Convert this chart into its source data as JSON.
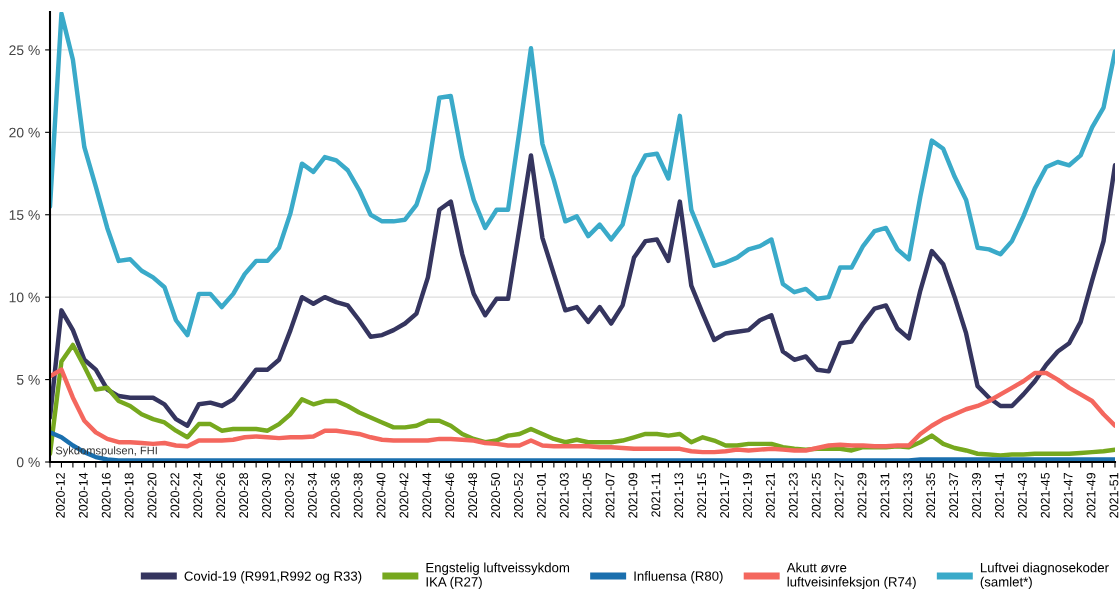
{
  "chart_data": {
    "type": "line",
    "categories": [
      null,
      "2020-12",
      null,
      "2020-14",
      null,
      "2020-16",
      null,
      "2020-18",
      null,
      "2020-20",
      null,
      "2020-22",
      null,
      "2020-24",
      null,
      "2020-26",
      null,
      "2020-28",
      null,
      "2020-30",
      null,
      "2020-32",
      null,
      "2020-34",
      null,
      "2020-36",
      null,
      "2020-38",
      null,
      "2020-40",
      null,
      "2020-42",
      null,
      "2020-44",
      null,
      "2020-46",
      null,
      "2020-48",
      null,
      "2020-50",
      null,
      "2020-52",
      null,
      "2021-01",
      null,
      "2021-03",
      null,
      "2021-05",
      null,
      "2021-07",
      null,
      "2021-09",
      null,
      "2021-11",
      null,
      "2021-13",
      null,
      "2021-15",
      null,
      "2021-17",
      null,
      "2021-19",
      null,
      "2021-21",
      null,
      "2021-23",
      null,
      "2021-25",
      null,
      "2021-27",
      null,
      "2021-29",
      null,
      "2021-31",
      null,
      "2021-33",
      null,
      "2021-35",
      null,
      "2021-37",
      null,
      "2021-39",
      null,
      "2021-41",
      null,
      "2021-43",
      null,
      "2021-45",
      null,
      "2021-47",
      null,
      "2021-49",
      null,
      "2021-51"
    ],
    "series": [
      {
        "name": "Covid-19 (R991,R992 og R33)",
        "color": "#35355f",
        "values": [
          2.7,
          9.2,
          8.0,
          6.2,
          5.6,
          4.4,
          4.0,
          3.9,
          3.9,
          3.9,
          3.5,
          2.6,
          2.2,
          3.5,
          3.6,
          3.4,
          3.8,
          4.7,
          5.6,
          5.6,
          6.2,
          8.0,
          10.0,
          9.6,
          10.0,
          9.7,
          9.5,
          8.6,
          7.6,
          7.7,
          8.0,
          8.4,
          9.0,
          11.2,
          15.3,
          15.8,
          12.6,
          10.2,
          8.9,
          9.9,
          9.9,
          14.2,
          18.6,
          13.6,
          11.4,
          9.2,
          9.4,
          8.5,
          9.4,
          8.4,
          9.5,
          12.4,
          13.4,
          13.5,
          12.2,
          15.8,
          10.7,
          9.0,
          7.4,
          7.8,
          7.9,
          8.0,
          8.6,
          8.9,
          6.7,
          6.2,
          6.4,
          5.6,
          5.5,
          7.2,
          7.3,
          8.4,
          9.3,
          9.5,
          8.1,
          7.5,
          10.4,
          12.8,
          12.0,
          10.0,
          7.8,
          4.6,
          3.9,
          3.4,
          3.4,
          4.1,
          4.9,
          5.9,
          6.7,
          7.2,
          8.5,
          11.0,
          13.4,
          18.0
        ]
      },
      {
        "name": "Engstelig luftveissykdom\nIKA (R27)",
        "color": "#76a81e",
        "values": [
          0.5,
          6.1,
          7.1,
          5.8,
          4.4,
          4.5,
          3.7,
          3.4,
          2.9,
          2.6,
          2.4,
          1.9,
          1.5,
          2.3,
          2.3,
          1.9,
          2.0,
          2.0,
          2.0,
          1.9,
          2.3,
          2.9,
          3.8,
          3.5,
          3.7,
          3.7,
          3.4,
          3.0,
          2.7,
          2.4,
          2.1,
          2.1,
          2.2,
          2.5,
          2.5,
          2.2,
          1.7,
          1.4,
          1.2,
          1.3,
          1.6,
          1.7,
          2.0,
          1.7,
          1.4,
          1.2,
          1.35,
          1.2,
          1.2,
          1.2,
          1.3,
          1.5,
          1.7,
          1.7,
          1.6,
          1.7,
          1.2,
          1.5,
          1.3,
          1.0,
          1.0,
          1.1,
          1.1,
          1.1,
          0.9,
          0.8,
          0.75,
          0.8,
          0.8,
          0.8,
          0.7,
          0.9,
          0.9,
          0.9,
          0.95,
          0.9,
          1.2,
          1.6,
          1.1,
          0.85,
          0.7,
          0.5,
          0.45,
          0.4,
          0.45,
          0.45,
          0.5,
          0.5,
          0.5,
          0.5,
          0.55,
          0.6,
          0.65,
          0.75
        ]
      },
      {
        "name": "Influensa (R80)",
        "color": "#1a6fae",
        "values": [
          1.8,
          1.5,
          1.0,
          0.6,
          0.3,
          0.15,
          0.1,
          0.1,
          0.1,
          0.1,
          0.1,
          0.1,
          0.1,
          0.1,
          0.1,
          0.1,
          0.1,
          0.1,
          0.1,
          0.1,
          0.1,
          0.1,
          0.1,
          0.1,
          0.1,
          0.1,
          0.1,
          0.1,
          0.1,
          0.1,
          0.1,
          0.1,
          0.1,
          0.1,
          0.1,
          0.1,
          0.1,
          0.1,
          0.1,
          0.1,
          0.1,
          0.1,
          0.1,
          0.1,
          0.1,
          0.1,
          0.1,
          0.1,
          0.1,
          0.1,
          0.1,
          0.1,
          0.1,
          0.1,
          0.1,
          0.1,
          0.1,
          0.1,
          0.1,
          0.1,
          0.1,
          0.1,
          0.1,
          0.1,
          0.1,
          0.1,
          0.1,
          0.1,
          0.1,
          0.1,
          0.1,
          0.1,
          0.1,
          0.1,
          0.1,
          0.1,
          0.15,
          0.15,
          0.15,
          0.15,
          0.15,
          0.15,
          0.15,
          0.15,
          0.15,
          0.15,
          0.15,
          0.15,
          0.15,
          0.15,
          0.15,
          0.15,
          0.15,
          0.15
        ]
      },
      {
        "name": "Akutt øvre\nluftveisinfeksjon (R74)",
        "color": "#f4675e",
        "values": [
          5.2,
          5.6,
          3.9,
          2.5,
          1.8,
          1.4,
          1.2,
          1.2,
          1.15,
          1.1,
          1.15,
          1.0,
          0.95,
          1.3,
          1.3,
          1.3,
          1.35,
          1.5,
          1.55,
          1.5,
          1.45,
          1.5,
          1.5,
          1.55,
          1.9,
          1.9,
          1.8,
          1.7,
          1.5,
          1.35,
          1.3,
          1.3,
          1.3,
          1.3,
          1.4,
          1.4,
          1.35,
          1.3,
          1.15,
          1.1,
          1.0,
          1.0,
          1.3,
          1.0,
          0.95,
          0.95,
          0.95,
          0.95,
          0.9,
          0.9,
          0.85,
          0.8,
          0.8,
          0.8,
          0.8,
          0.8,
          0.65,
          0.6,
          0.6,
          0.65,
          0.75,
          0.7,
          0.75,
          0.8,
          0.75,
          0.7,
          0.7,
          0.85,
          1.0,
          1.05,
          1.0,
          1.0,
          0.95,
          0.95,
          1.0,
          1.0,
          1.7,
          2.2,
          2.6,
          2.9,
          3.2,
          3.4,
          3.7,
          4.1,
          4.5,
          4.9,
          5.4,
          5.4,
          5.0,
          4.5,
          4.1,
          3.7,
          2.9,
          2.2
        ]
      },
      {
        "name": "Luftvei diagnosekoder\n(samlet*)",
        "color": "#3aaac9",
        "values": [
          15.5,
          27.2,
          24.4,
          19.1,
          16.7,
          14.2,
          12.2,
          12.3,
          11.6,
          11.2,
          10.6,
          8.6,
          7.7,
          10.2,
          10.2,
          9.4,
          10.2,
          11.4,
          12.2,
          12.2,
          13.0,
          15.1,
          18.1,
          17.6,
          18.5,
          18.3,
          17.7,
          16.5,
          15.0,
          14.6,
          14.6,
          14.7,
          15.6,
          17.7,
          22.1,
          22.2,
          18.5,
          15.9,
          14.2,
          15.3,
          15.3,
          20.1,
          25.1,
          19.3,
          17.1,
          14.6,
          14.9,
          13.7,
          14.4,
          13.5,
          14.4,
          17.3,
          18.6,
          18.7,
          17.2,
          21.0,
          15.3,
          13.6,
          11.9,
          12.1,
          12.4,
          12.9,
          13.1,
          13.5,
          10.8,
          10.3,
          10.5,
          9.9,
          10.0,
          11.8,
          11.8,
          13.1,
          14.0,
          14.2,
          12.9,
          12.3,
          16.1,
          19.5,
          19.0,
          17.3,
          15.9,
          13.0,
          12.9,
          12.6,
          13.4,
          14.9,
          16.6,
          17.9,
          18.2,
          18.0,
          18.6,
          20.3,
          21.5,
          24.9
        ]
      }
    ],
    "ylim": [
      0,
      27.3
    ],
    "yticks": [
      {
        "value": 0,
        "label": "0 %"
      },
      {
        "value": 5,
        "label": "5 %"
      },
      {
        "value": 10,
        "label": "10 %"
      },
      {
        "value": 15,
        "label": "15 %"
      },
      {
        "value": 20,
        "label": "20 %"
      },
      {
        "value": 25,
        "label": "25 %"
      }
    ],
    "grid": "y",
    "legend": "bottom",
    "annotations": [
      "Sykdomspulsen, FHI"
    ]
  }
}
